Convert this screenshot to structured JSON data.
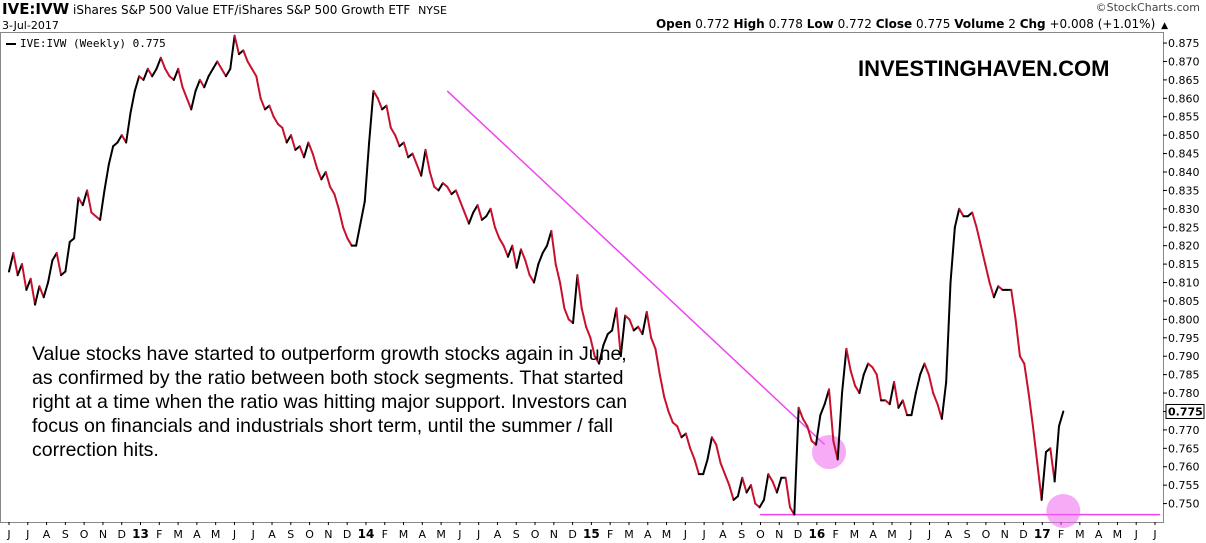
{
  "header": {
    "symbol": "IVE:IVW",
    "description": "iShares S&P 500 Value ETF/iShares S&P 500 Growth ETF",
    "exchange": "NYSE",
    "date": "3-Jul-2017",
    "brand": "©StockCharts.com"
  },
  "ohlc": {
    "open_label": "Open",
    "open": "0.772",
    "high_label": "High",
    "high": "0.778",
    "low_label": "Low",
    "low": "0.772",
    "close_label": "Close",
    "close": "0.775",
    "volume_label": "Volume",
    "volume": "2",
    "chg_label": "Chg",
    "chg": "+0.008 (+1.01%)",
    "direction_icon": "up-triangle"
  },
  "legend": {
    "label": "IVE:IVW (Weekly) 0.775"
  },
  "watermark": "INVESTINGHAVEN.COM",
  "annotation": "Value stocks have started to outperform growth stocks again in June, as confirmed by the ratio between both stock segments. That started right at a time when the ratio was hitting major support. Investors can focus on financials and industrials short term, until the summer / fall correction hits.",
  "colors": {
    "up": "#000000",
    "down": "#c8102e",
    "trendline": "#ee44ee",
    "highlight": "#ee66ee"
  },
  "chart_data": {
    "type": "line",
    "ylim": [
      0.745,
      0.878
    ],
    "yticks": [
      "0.875",
      "0.870",
      "0.865",
      "0.860",
      "0.855",
      "0.850",
      "0.845",
      "0.840",
      "0.835",
      "0.830",
      "0.825",
      "0.820",
      "0.815",
      "0.810",
      "0.805",
      "0.800",
      "0.795",
      "0.790",
      "0.785",
      "0.780",
      "0.775",
      "0.770",
      "0.765",
      "0.760",
      "0.755",
      "0.750"
    ],
    "last_value_label": "0.775",
    "x_month_labels": [
      "J",
      "J",
      "A",
      "S",
      "O",
      "N",
      "D",
      "13",
      "F",
      "M",
      "A",
      "M",
      "J",
      "J",
      "A",
      "S",
      "O",
      "N",
      "D",
      "14",
      "F",
      "M",
      "A",
      "M",
      "J",
      "J",
      "A",
      "S",
      "O",
      "N",
      "D",
      "15",
      "F",
      "M",
      "A",
      "M",
      "J",
      "J",
      "A",
      "S",
      "O",
      "N",
      "D",
      "16",
      "F",
      "M",
      "A",
      "M",
      "J",
      "J",
      "A",
      "S",
      "O",
      "N",
      "D",
      "17",
      "F",
      "M",
      "A",
      "M",
      "J",
      "J"
    ],
    "series": [
      {
        "name": "IVE:IVW (Weekly)",
        "start_month_index": 0.5,
        "weeks_per_month": 4.33,
        "values": [
          0.813,
          0.818,
          0.812,
          0.815,
          0.808,
          0.811,
          0.804,
          0.809,
          0.806,
          0.81,
          0.816,
          0.818,
          0.812,
          0.813,
          0.821,
          0.822,
          0.833,
          0.831,
          0.835,
          0.829,
          0.828,
          0.827,
          0.835,
          0.842,
          0.847,
          0.848,
          0.85,
          0.848,
          0.856,
          0.862,
          0.866,
          0.865,
          0.868,
          0.866,
          0.868,
          0.871,
          0.868,
          0.866,
          0.865,
          0.868,
          0.863,
          0.86,
          0.857,
          0.862,
          0.865,
          0.863,
          0.866,
          0.868,
          0.87,
          0.868,
          0.866,
          0.868,
          0.877,
          0.872,
          0.873,
          0.87,
          0.868,
          0.866,
          0.86,
          0.857,
          0.858,
          0.855,
          0.853,
          0.852,
          0.848,
          0.85,
          0.846,
          0.847,
          0.844,
          0.848,
          0.845,
          0.841,
          0.838,
          0.84,
          0.836,
          0.834,
          0.83,
          0.825,
          0.822,
          0.82,
          0.82,
          0.826,
          0.832,
          0.848,
          0.862,
          0.86,
          0.857,
          0.858,
          0.852,
          0.85,
          0.847,
          0.848,
          0.844,
          0.845,
          0.842,
          0.839,
          0.846,
          0.84,
          0.836,
          0.835,
          0.837,
          0.836,
          0.834,
          0.835,
          0.832,
          0.829,
          0.826,
          0.829,
          0.831,
          0.827,
          0.828,
          0.83,
          0.825,
          0.822,
          0.82,
          0.817,
          0.82,
          0.814,
          0.819,
          0.816,
          0.812,
          0.81,
          0.815,
          0.818,
          0.82,
          0.824,
          0.815,
          0.81,
          0.803,
          0.8,
          0.799,
          0.812,
          0.803,
          0.798,
          0.795,
          0.79,
          0.788,
          0.793,
          0.796,
          0.797,
          0.803,
          0.79,
          0.801,
          0.8,
          0.797,
          0.798,
          0.796,
          0.802,
          0.795,
          0.792,
          0.785,
          0.779,
          0.775,
          0.772,
          0.771,
          0.768,
          0.769,
          0.765,
          0.762,
          0.758,
          0.758,
          0.762,
          0.768,
          0.766,
          0.761,
          0.758,
          0.755,
          0.751,
          0.752,
          0.757,
          0.753,
          0.755,
          0.75,
          0.749,
          0.751,
          0.758,
          0.756,
          0.753,
          0.757,
          0.757,
          0.749,
          0.747,
          0.776,
          0.773,
          0.771,
          0.767,
          0.766,
          0.774,
          0.777,
          0.781,
          0.767,
          0.762,
          0.78,
          0.792,
          0.786,
          0.782,
          0.78,
          0.785,
          0.788,
          0.787,
          0.785,
          0.778,
          0.778,
          0.777,
          0.783,
          0.776,
          0.778,
          0.774,
          0.774,
          0.78,
          0.785,
          0.788,
          0.785,
          0.78,
          0.777,
          0.773,
          0.783,
          0.81,
          0.825,
          0.83,
          0.828,
          0.828,
          0.829,
          0.825,
          0.82,
          0.815,
          0.81,
          0.806,
          0.809,
          0.808,
          0.808,
          0.808,
          0.8,
          0.79,
          0.788,
          0.78,
          0.771,
          0.761,
          0.751,
          0.764,
          0.765,
          0.756,
          0.771,
          0.775
        ]
      }
    ],
    "support_level": 0.747,
    "trendline": {
      "from": {
        "week": 101,
        "value": 0.862
      },
      "to": {
        "week": 188,
        "value": 0.766
      }
    },
    "highlights": [
      {
        "week": 189,
        "value": 0.764
      },
      {
        "week": 243,
        "value": 0.748
      }
    ]
  }
}
